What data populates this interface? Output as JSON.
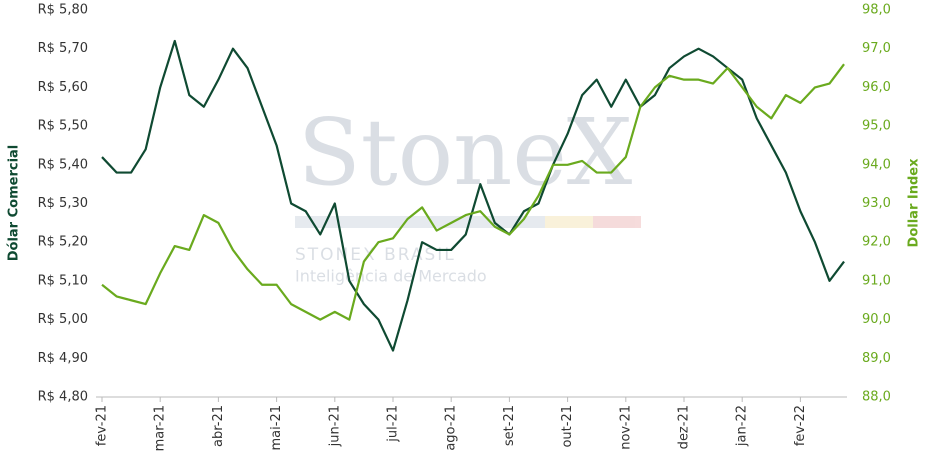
{
  "chart_data": {
    "type": "line",
    "y_label": "Dólar Comercial",
    "y2_label": "Dollar Index",
    "watermark": [
      "StoneX",
      "STONEX BRASIL",
      "Inteligência de Mercado"
    ],
    "categories": [
      "fev-21",
      null,
      null,
      null,
      "mar-21",
      null,
      null,
      null,
      "abr-21",
      null,
      null,
      null,
      "mai-21",
      null,
      null,
      null,
      "jun-21",
      null,
      null,
      null,
      "jul-21",
      null,
      null,
      null,
      "ago-21",
      null,
      null,
      null,
      "set-21",
      null,
      null,
      null,
      "out-21",
      null,
      null,
      null,
      "nov-21",
      null,
      null,
      null,
      "dez-21",
      null,
      null,
      null,
      "jan-22",
      null,
      null,
      null,
      "fev-22",
      null,
      null,
      null
    ],
    "series": [
      {
        "name": "Dólar Comercial",
        "color": "#0f4a32",
        "values": [
          5.42,
          5.38,
          5.38,
          5.44,
          5.6,
          5.72,
          5.58,
          5.55,
          5.62,
          5.7,
          5.65,
          5.55,
          5.45,
          5.3,
          5.28,
          5.22,
          5.3,
          5.1,
          5.04,
          5.0,
          4.92,
          5.05,
          5.2,
          5.18,
          5.18,
          5.22,
          5.35,
          5.25,
          5.22,
          5.28,
          5.3,
          5.4,
          5.48,
          5.58,
          5.62,
          5.55,
          5.62,
          5.55,
          5.58,
          5.65,
          5.68,
          5.7,
          5.68,
          5.65,
          5.62,
          5.52,
          5.45,
          5.38,
          5.28,
          5.2,
          5.1,
          5.15
        ]
      },
      {
        "name": "Dollar Index",
        "color": "#6aaa1e",
        "axis": "y2",
        "values": [
          90.9,
          90.6,
          90.5,
          90.4,
          91.2,
          91.9,
          91.8,
          92.7,
          92.5,
          91.8,
          91.3,
          90.9,
          90.9,
          90.4,
          90.2,
          90.0,
          90.2,
          90.0,
          91.5,
          92.0,
          92.1,
          92.6,
          92.9,
          92.3,
          92.5,
          92.7,
          92.8,
          92.4,
          92.2,
          92.6,
          93.2,
          94.0,
          94.0,
          94.1,
          93.8,
          93.8,
          94.2,
          95.5,
          96.0,
          96.3,
          96.2,
          96.2,
          96.1,
          96.5,
          96.0,
          95.5,
          95.2,
          95.8,
          95.6,
          96.0,
          96.1,
          96.6
        ]
      }
    ],
    "ylim": [
      4.8,
      5.8
    ],
    "yticks": [
      {
        "value": 4.8,
        "label": "R$ 4,80"
      },
      {
        "value": 4.9,
        "label": "R$ 4,90"
      },
      {
        "value": 5.0,
        "label": "R$ 5,00"
      },
      {
        "value": 5.1,
        "label": "R$ 5,10"
      },
      {
        "value": 5.2,
        "label": "R$ 5,20"
      },
      {
        "value": 5.3,
        "label": "R$ 5,30"
      },
      {
        "value": 5.4,
        "label": "R$ 5,40"
      },
      {
        "value": 5.5,
        "label": "R$ 5,50"
      },
      {
        "value": 5.6,
        "label": "R$ 5,60"
      },
      {
        "value": 5.7,
        "label": "R$ 5,70"
      },
      {
        "value": 5.8,
        "label": "R$ 5,80"
      }
    ],
    "y2lim": [
      88,
      98
    ],
    "y2ticks": [
      {
        "value": 88,
        "label": "88,0"
      },
      {
        "value": 89,
        "label": "89,0"
      },
      {
        "value": 90,
        "label": "90,0"
      },
      {
        "value": 91,
        "label": "91,0"
      },
      {
        "value": 92,
        "label": "92,0"
      },
      {
        "value": 93,
        "label": "93,0"
      },
      {
        "value": 94,
        "label": "94,0"
      },
      {
        "value": 95,
        "label": "95,0"
      },
      {
        "value": 96,
        "label": "96,0"
      },
      {
        "value": 97,
        "label": "97,0"
      },
      {
        "value": 98,
        "label": "98,0"
      }
    ],
    "grid": false
  }
}
